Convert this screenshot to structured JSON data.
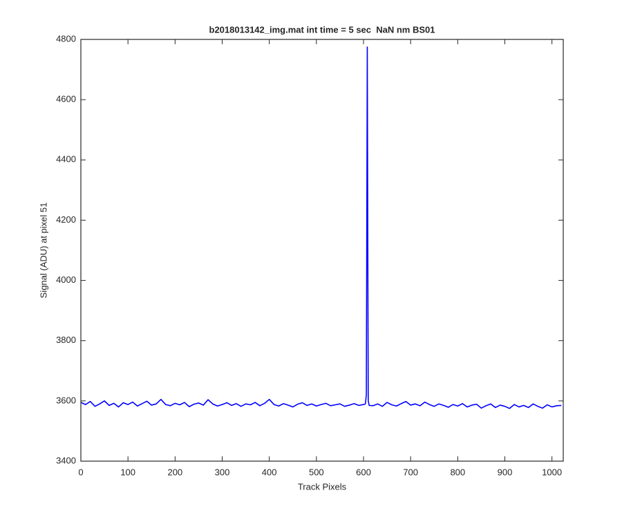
{
  "chart_data": {
    "type": "line",
    "title": "b2018013142_img.mat int time = 5 sec  NaN nm BS01",
    "x_label": "Track Pixels",
    "y_label": "Signal (ADU) at pixel 51",
    "x": [
      0,
      10,
      20,
      30,
      40,
      50,
      60,
      70,
      80,
      90,
      100,
      110,
      120,
      130,
      140,
      150,
      160,
      170,
      180,
      190,
      200,
      210,
      220,
      230,
      240,
      250,
      260,
      270,
      280,
      290,
      300,
      310,
      320,
      330,
      340,
      350,
      360,
      370,
      380,
      390,
      400,
      410,
      420,
      430,
      440,
      450,
      460,
      470,
      480,
      490,
      500,
      510,
      520,
      530,
      540,
      550,
      560,
      570,
      580,
      590,
      600,
      604,
      606,
      608,
      610,
      612,
      620,
      630,
      640,
      650,
      660,
      670,
      680,
      690,
      700,
      710,
      720,
      730,
      740,
      750,
      760,
      770,
      780,
      790,
      800,
      810,
      820,
      830,
      840,
      850,
      860,
      870,
      880,
      890,
      900,
      910,
      920,
      930,
      940,
      950,
      960,
      970,
      980,
      990,
      1000,
      1010,
      1020
    ],
    "series": [
      {
        "name": "signal",
        "color": "#0000ff",
        "values": [
          3595,
          3588,
          3598,
          3582,
          3590,
          3600,
          3585,
          3592,
          3580,
          3594,
          3588,
          3596,
          3583,
          3591,
          3599,
          3586,
          3590,
          3605,
          3588,
          3584,
          3592,
          3587,
          3595,
          3581,
          3589,
          3593,
          3586,
          3604,
          3590,
          3583,
          3588,
          3594,
          3585,
          3591,
          3582,
          3590,
          3587,
          3595,
          3584,
          3592,
          3605,
          3588,
          3583,
          3591,
          3586,
          3580,
          3589,
          3594,
          3585,
          3590,
          3583,
          3588,
          3592,
          3584,
          3587,
          3590,
          3582,
          3586,
          3591,
          3585,
          3588,
          3590,
          3620,
          4775,
          3600,
          3585,
          3584,
          3590,
          3582,
          3595,
          3587,
          3583,
          3591,
          3598,
          3586,
          3590,
          3584,
          3596,
          3588,
          3582,
          3590,
          3585,
          3579,
          3588,
          3583,
          3591,
          3580,
          3586,
          3589,
          3576,
          3584,
          3590,
          3578,
          3586,
          3582,
          3575,
          3588,
          3580,
          3585,
          3578,
          3590,
          3582,
          3576,
          3587,
          3580,
          3584,
          3585
        ]
      }
    ],
    "xlim": [
      0,
      1024
    ],
    "xticks": [
      0,
      100,
      200,
      300,
      400,
      500,
      600,
      700,
      800,
      900,
      1000
    ],
    "ylim": [
      3400,
      4800
    ],
    "yticks": [
      3400,
      3600,
      3800,
      4000,
      4200,
      4400,
      4600,
      4800
    ],
    "grid": false
  }
}
